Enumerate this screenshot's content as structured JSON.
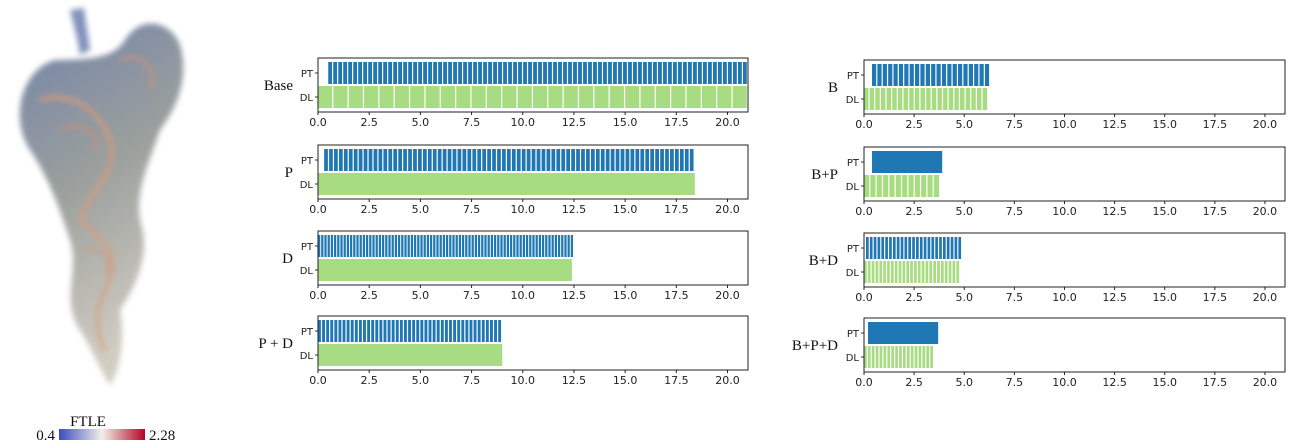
{
  "colorbar": {
    "title": "FTLE",
    "min": 0.4,
    "max": 2.28
  },
  "chart_data": [
    {
      "type": "timeline",
      "title": "Base",
      "xlim": [
        0,
        21
      ],
      "xticks": [
        {
          "value": 0,
          "label": "0.0"
        },
        {
          "value": 2.5,
          "label": "2.5"
        },
        {
          "value": 5,
          "label": "5.0"
        },
        {
          "value": 7.5,
          "label": "7.5"
        },
        {
          "value": 10,
          "label": "10.0"
        },
        {
          "value": 12.5,
          "label": "12.5"
        },
        {
          "value": 15,
          "label": "15.0"
        },
        {
          "value": 17.5,
          "label": "17.5"
        },
        {
          "value": 20,
          "label": "20.0"
        }
      ],
      "series": [
        {
          "name": "PT",
          "color": "#1f77b4",
          "start": 0.5,
          "end": 21,
          "segments": 84
        },
        {
          "name": "DL",
          "color": "#a8dc82",
          "start": 0,
          "end": 21,
          "segments": 28
        }
      ]
    },
    {
      "type": "timeline",
      "title": "P",
      "xlim": [
        0,
        21
      ],
      "xticks": [
        {
          "value": 0,
          "label": "0.0"
        },
        {
          "value": 2.5,
          "label": "2.5"
        },
        {
          "value": 5,
          "label": "5.0"
        },
        {
          "value": 7.5,
          "label": "7.5"
        },
        {
          "value": 10,
          "label": "10.0"
        },
        {
          "value": 12.5,
          "label": "12.5"
        },
        {
          "value": 15,
          "label": "15.0"
        },
        {
          "value": 17.5,
          "label": "17.5"
        },
        {
          "value": 20,
          "label": "20.0"
        }
      ],
      "series": [
        {
          "name": "PT",
          "color": "#1f77b4",
          "start": 0.3,
          "end": 18.4,
          "segments": 75
        },
        {
          "name": "DL",
          "color": "#a8dc82",
          "start": 0,
          "end": 18.4,
          "segments": 1
        }
      ]
    },
    {
      "type": "timeline",
      "title": "D",
      "xlim": [
        0,
        21
      ],
      "xticks": [
        {
          "value": 0,
          "label": "0.0"
        },
        {
          "value": 2.5,
          "label": "2.5"
        },
        {
          "value": 5,
          "label": "5.0"
        },
        {
          "value": 7.5,
          "label": "7.5"
        },
        {
          "value": 10,
          "label": "10.0"
        },
        {
          "value": 12.5,
          "label": "12.5"
        },
        {
          "value": 15,
          "label": "15.0"
        },
        {
          "value": 17.5,
          "label": "17.5"
        },
        {
          "value": 20,
          "label": "20.0"
        }
      ],
      "series": [
        {
          "name": "PT",
          "color": "#1f77b4",
          "start": 0,
          "end": 12.5,
          "segments": 80
        },
        {
          "name": "DL",
          "color": "#a8dc82",
          "start": 0,
          "end": 12.4,
          "segments": 1
        }
      ]
    },
    {
      "type": "timeline",
      "title": "P + D",
      "xlim": [
        0,
        21
      ],
      "xticks": [
        {
          "value": 0,
          "label": "0.0"
        },
        {
          "value": 2.5,
          "label": "2.5"
        },
        {
          "value": 5,
          "label": "5.0"
        },
        {
          "value": 7.5,
          "label": "7.5"
        },
        {
          "value": 10,
          "label": "10.0"
        },
        {
          "value": 12.5,
          "label": "12.5"
        },
        {
          "value": 15,
          "label": "15.0"
        },
        {
          "value": 17.5,
          "label": "17.5"
        },
        {
          "value": 20,
          "label": "20.0"
        }
      ],
      "series": [
        {
          "name": "PT",
          "color": "#1f77b4",
          "start": 0,
          "end": 9,
          "segments": 45
        },
        {
          "name": "DL",
          "color": "#a8dc82",
          "start": 0,
          "end": 9,
          "segments": 1
        }
      ]
    },
    {
      "type": "timeline",
      "title": "B",
      "xlim": [
        0,
        21
      ],
      "xticks": [
        {
          "value": 0,
          "label": "0.0"
        },
        {
          "value": 2.5,
          "label": "2.5"
        },
        {
          "value": 5,
          "label": "5.0"
        },
        {
          "value": 7.5,
          "label": "7.5"
        },
        {
          "value": 10,
          "label": "10.0"
        },
        {
          "value": 12.5,
          "label": "12.5"
        },
        {
          "value": 15,
          "label": "15.0"
        },
        {
          "value": 17.5,
          "label": "17.5"
        },
        {
          "value": 20,
          "label": "20.0"
        }
      ],
      "series": [
        {
          "name": "PT",
          "color": "#1f77b4",
          "start": 0.4,
          "end": 6.3,
          "segments": 22
        },
        {
          "name": "DL",
          "color": "#a8dc82",
          "start": 0,
          "end": 6.2,
          "segments": 22
        }
      ]
    },
    {
      "type": "timeline",
      "title": "B+P",
      "xlim": [
        0,
        21
      ],
      "xticks": [
        {
          "value": 0,
          "label": "0.0"
        },
        {
          "value": 2.5,
          "label": "2.5"
        },
        {
          "value": 5,
          "label": "5.0"
        },
        {
          "value": 7.5,
          "label": "7.5"
        },
        {
          "value": 10,
          "label": "10.0"
        },
        {
          "value": 12.5,
          "label": "12.5"
        },
        {
          "value": 15,
          "label": "15.0"
        },
        {
          "value": 17.5,
          "label": "17.5"
        },
        {
          "value": 20,
          "label": "20.0"
        }
      ],
      "series": [
        {
          "name": "PT",
          "color": "#1f77b4",
          "start": 0.4,
          "end": 3.9,
          "segments": 1
        },
        {
          "name": "DL",
          "color": "#a8dc82",
          "start": 0,
          "end": 3.8,
          "segments": 12
        }
      ]
    },
    {
      "type": "timeline",
      "title": "B+D",
      "xlim": [
        0,
        21
      ],
      "xticks": [
        {
          "value": 0,
          "label": "0.0"
        },
        {
          "value": 2.5,
          "label": "2.5"
        },
        {
          "value": 5,
          "label": "5.0"
        },
        {
          "value": 7.5,
          "label": "7.5"
        },
        {
          "value": 10,
          "label": "10.0"
        },
        {
          "value": 12.5,
          "label": "12.5"
        },
        {
          "value": 15,
          "label": "15.0"
        },
        {
          "value": 17.5,
          "label": "17.5"
        },
        {
          "value": 20,
          "label": "20.0"
        }
      ],
      "series": [
        {
          "name": "PT",
          "color": "#1f77b4",
          "start": 0.1,
          "end": 4.9,
          "segments": 25
        },
        {
          "name": "DL",
          "color": "#a8dc82",
          "start": 0,
          "end": 4.8,
          "segments": 25
        }
      ]
    },
    {
      "type": "timeline",
      "title": "B+P+D",
      "xlim": [
        0,
        21
      ],
      "xticks": [
        {
          "value": 0,
          "label": "0.0"
        },
        {
          "value": 2.5,
          "label": "2.5"
        },
        {
          "value": 5,
          "label": "5.0"
        },
        {
          "value": 7.5,
          "label": "7.5"
        },
        {
          "value": 10,
          "label": "10.0"
        },
        {
          "value": 12.5,
          "label": "12.5"
        },
        {
          "value": 15,
          "label": "15.0"
        },
        {
          "value": 17.5,
          "label": "17.5"
        },
        {
          "value": 20,
          "label": "20.0"
        }
      ],
      "series": [
        {
          "name": "PT",
          "color": "#1f77b4",
          "start": 0.2,
          "end": 3.7,
          "segments": 1
        },
        {
          "name": "DL",
          "color": "#a8dc82",
          "start": 0,
          "end": 3.5,
          "segments": 18
        }
      ]
    }
  ]
}
